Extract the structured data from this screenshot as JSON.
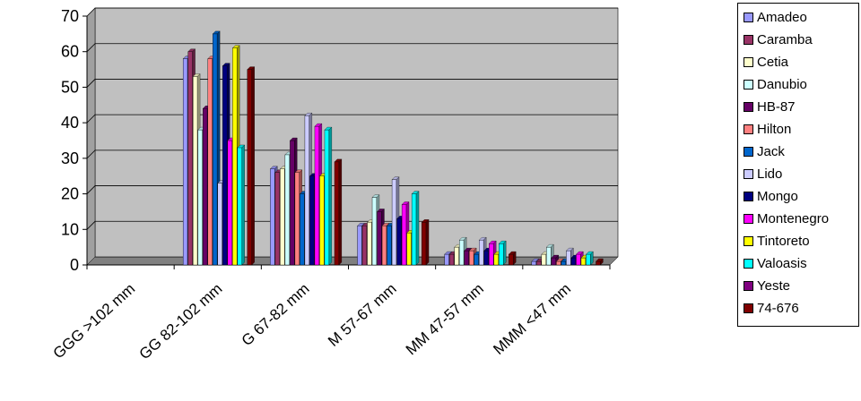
{
  "chart_data": {
    "type": "bar",
    "style": "3d-clustered-column",
    "categories": [
      "GGG >102 mm",
      "GG 82-102 mm",
      "G 67-82 mm",
      "M 57-67 mm",
      "MM 47-57 mm",
      "MMM <47 mm"
    ],
    "ylim": [
      0,
      70
    ],
    "yticks": [
      0,
      10,
      20,
      30,
      40,
      50,
      60,
      70
    ],
    "grid": true,
    "legend_position": "right",
    "plot_background": "#c0c0c0",
    "series": [
      {
        "name": "Amadeo",
        "color": "#9999ff",
        "values": [
          0,
          58,
          27,
          11,
          3,
          1
        ]
      },
      {
        "name": "Caramba",
        "color": "#993366",
        "values": [
          0,
          60,
          26,
          11,
          3,
          1
        ]
      },
      {
        "name": "Cetia",
        "color": "#ffffcc",
        "values": [
          0,
          53,
          27,
          12,
          5,
          3
        ]
      },
      {
        "name": "Danubio",
        "color": "#ccffff",
        "values": [
          0,
          38,
          31,
          19,
          7,
          5
        ]
      },
      {
        "name": "HB-87",
        "color": "#660066",
        "values": [
          0,
          44,
          35,
          15,
          4,
          2
        ]
      },
      {
        "name": "Hilton",
        "color": "#ff8080",
        "values": [
          0,
          58,
          26,
          11,
          4,
          1
        ]
      },
      {
        "name": "Jack",
        "color": "#0066cc",
        "values": [
          0,
          65,
          20,
          11,
          3,
          1
        ]
      },
      {
        "name": "Lido",
        "color": "#ccccff",
        "values": [
          0,
          23,
          42,
          24,
          7,
          4
        ]
      },
      {
        "name": "Mongo",
        "color": "#000080",
        "values": [
          0,
          56,
          25,
          13,
          4,
          2
        ]
      },
      {
        "name": "Montenegro",
        "color": "#ff00ff",
        "values": [
          0,
          35,
          39,
          17,
          6,
          3
        ]
      },
      {
        "name": "Tintoreto",
        "color": "#ffff00",
        "values": [
          0,
          61,
          25,
          9,
          3,
          2
        ]
      },
      {
        "name": "Valoasis",
        "color": "#00ffff",
        "values": [
          0,
          33,
          38,
          20,
          6,
          3
        ]
      },
      {
        "name": "Yeste",
        "color": "#800080",
        "values": [
          0,
          0,
          0,
          0,
          0,
          0
        ]
      },
      {
        "name": "74-676",
        "color": "#800000",
        "values": [
          0,
          55,
          29,
          12,
          3,
          1
        ]
      }
    ]
  }
}
